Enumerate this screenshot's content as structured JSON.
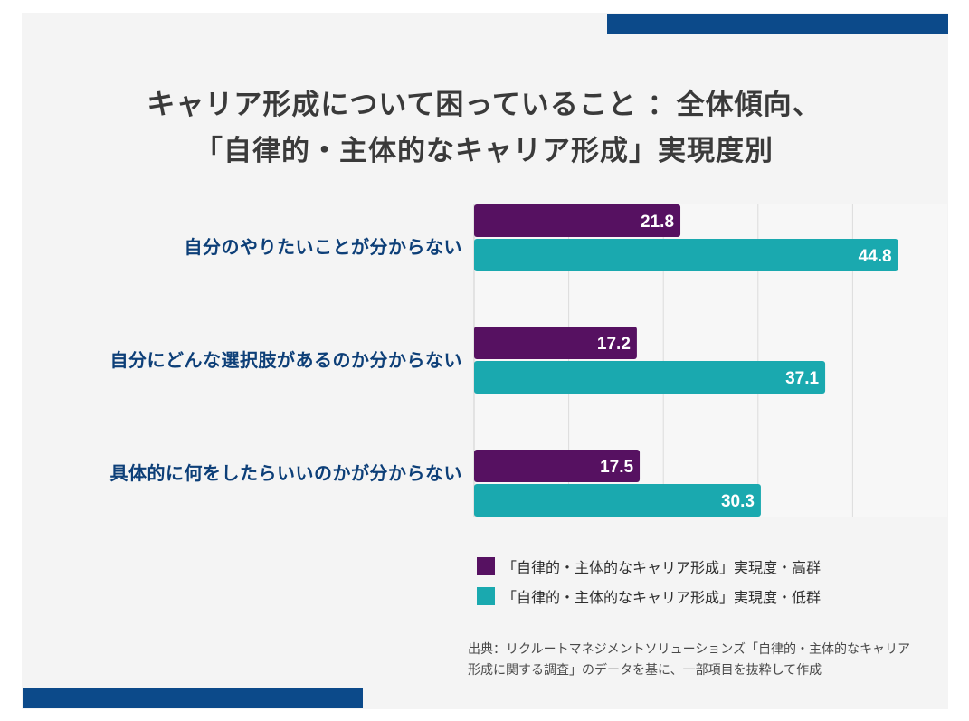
{
  "title_line1": "キャリア形成について困っていること ：全体傾向、",
  "title_line2": "「自律的・主体的なキャリア形成」実現度別",
  "colors": {
    "high": "#561161",
    "low": "#1aa9af",
    "stripe": "#0c4a8a",
    "category": "#0d3f78"
  },
  "chart_data": {
    "type": "bar",
    "orientation": "horizontal",
    "categories": [
      "自分のやりたいことが分からない",
      "自分にどんな選択肢があるのか分からない",
      "具体的に何をしたらいいのかが分からない"
    ],
    "series": [
      {
        "name": "「自律的・主体的なキャリア形成」実現度・高群",
        "values": [
          21.8,
          17.2,
          17.5
        ]
      },
      {
        "name": "「自律的・主体的なキャリア形成」実現度・低群",
        "values": [
          44.8,
          37.1,
          30.3
        ]
      }
    ],
    "xlim": [
      0,
      50
    ],
    "grid": true,
    "legend_position": "bottom-right"
  },
  "source_note": "出典：リクルートマネジメントソリューションズ「自律的・主体的なキャリア形成に関する調査」のデータを基に、一部項目を抜粋して作成"
}
